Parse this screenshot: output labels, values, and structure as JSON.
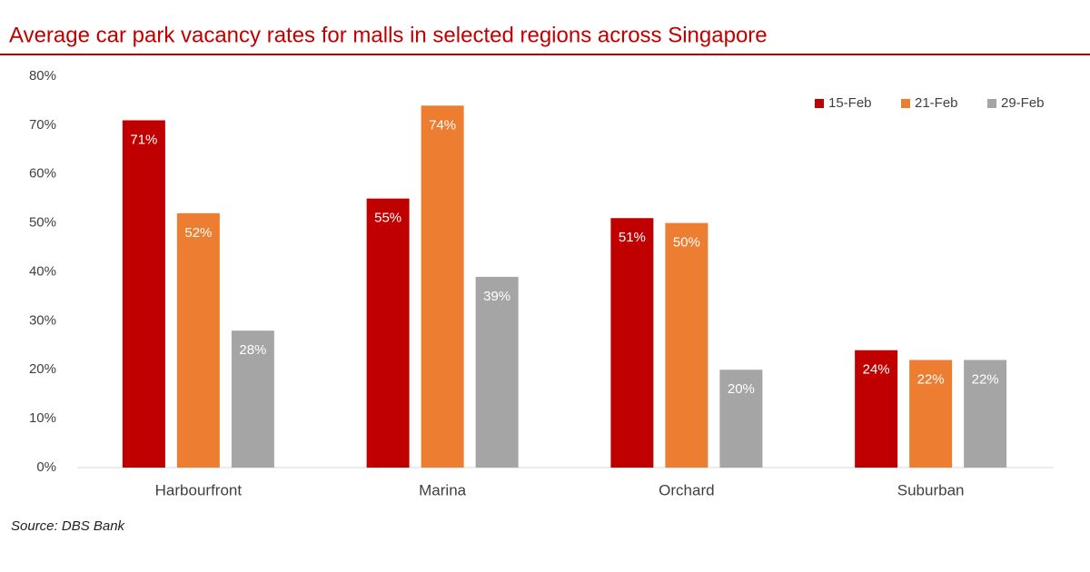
{
  "chart_data": {
    "type": "bar",
    "title": "Average car park vacancy rates for malls in selected regions across Singapore",
    "source": "Source: DBS Bank",
    "categories": [
      "Harbourfront",
      "Marina",
      "Orchard",
      "Suburban"
    ],
    "series": [
      {
        "name": "15-Feb",
        "color": "#c00000",
        "values": [
          71,
          55,
          51,
          24
        ],
        "value_labels": [
          "71%",
          "55%",
          "51%",
          "24%"
        ]
      },
      {
        "name": "21-Feb",
        "color": "#ed7d31",
        "values": [
          52,
          74,
          50,
          22
        ],
        "value_labels": [
          "52%",
          "74%",
          "50%",
          "22%"
        ]
      },
      {
        "name": "29-Feb",
        "color": "#a5a5a5",
        "values": [
          28,
          39,
          20,
          22
        ],
        "value_labels": [
          "28%",
          "39%",
          "20%",
          "22%"
        ]
      }
    ],
    "ylim": [
      0,
      80
    ],
    "yticks": [
      {
        "value": 0,
        "label": "0%"
      },
      {
        "value": 10,
        "label": "10%"
      },
      {
        "value": 20,
        "label": "20%"
      },
      {
        "value": 30,
        "label": "30%"
      },
      {
        "value": 40,
        "label": "40%"
      },
      {
        "value": 50,
        "label": "50%"
      },
      {
        "value": 60,
        "label": "60%"
      },
      {
        "value": 70,
        "label": "70%"
      },
      {
        "value": 80,
        "label": "80%"
      }
    ],
    "grid": false,
    "legend": "top-right"
  }
}
